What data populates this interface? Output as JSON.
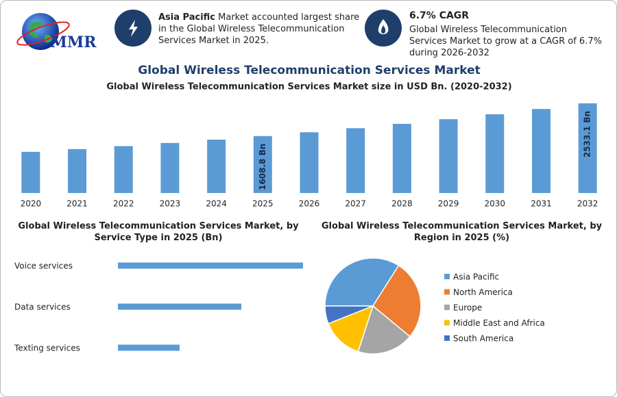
{
  "header": {
    "logo": "MMR",
    "title": "Global Wireless Telecommunication Services Market",
    "cards": [
      {
        "highlight": "Asia Pacific",
        "text": "Market accounted largest share in the Global Wireless Telecommunication Services Market in 2025."
      },
      {
        "highlight": "6.7% CAGR",
        "text": "Global Wireless Telecommunication Services Market to grow at a CAGR of 6.7% during 2026-2032"
      }
    ]
  },
  "chart_data": [
    {
      "type": "bar",
      "title": "Global Wireless Telecommunication Services Market size in USD Bn. (2020-2032)",
      "categories": [
        "2020",
        "2021",
        "2022",
        "2023",
        "2024",
        "2025",
        "2026",
        "2027",
        "2028",
        "2029",
        "2030",
        "2031",
        "2032"
      ],
      "values": [
        1163.3,
        1241.2,
        1324.4,
        1413.1,
        1507.8,
        1608.8,
        1716.6,
        1831.6,
        1954.3,
        2085.2,
        2224.9,
        2374.0,
        2533.1
      ],
      "value_labels": [
        null,
        null,
        null,
        null,
        null,
        "1608.8 Bn",
        null,
        null,
        null,
        null,
        null,
        null,
        "2533.1 Bn"
      ],
      "color": "#5b9bd5"
    },
    {
      "type": "bar",
      "horizontal": true,
      "title": "Global Wireless Telecommunication Services Market, by Service Type in 2025 (Bn)",
      "categories": [
        "Voice services",
        "Data services",
        "Texting services"
      ],
      "values": [
        804.4,
        536.3,
        268.1
      ],
      "color": "#5b9bd5"
    },
    {
      "type": "pie",
      "title": "Global Wireless Telecommunication Services Market, by Region in 2025 (%)",
      "categories": [
        "Asia Pacific",
        "North America",
        "Europe",
        "Middle East and Africa",
        "South America"
      ],
      "values": [
        34,
        27,
        19,
        14,
        6
      ],
      "colors": [
        "#5b9bd5",
        "#ed7d31",
        "#a5a5a5",
        "#ffc000",
        "#4472c4"
      ]
    }
  ]
}
